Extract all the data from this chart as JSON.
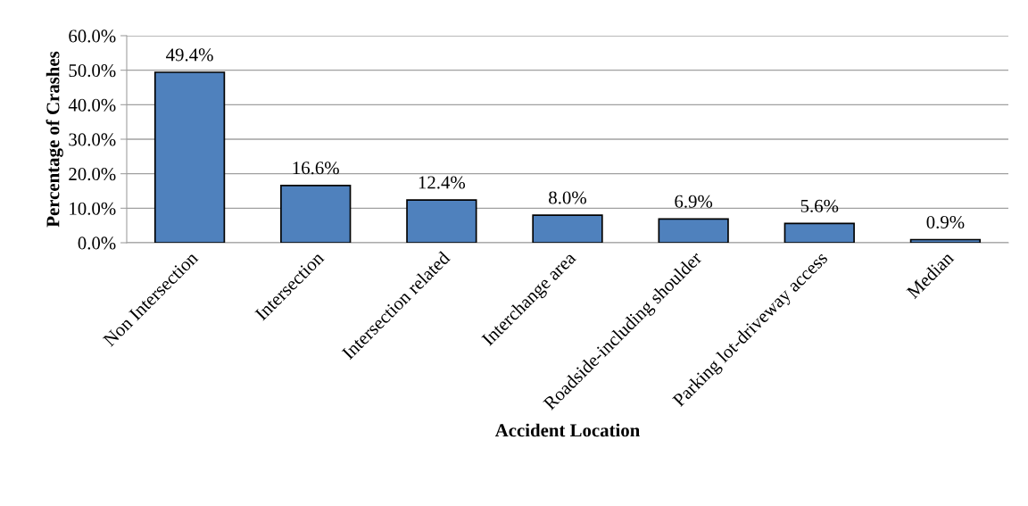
{
  "chart_data": {
    "type": "bar",
    "categories": [
      "Non Intersection",
      "Intersection",
      "Intersection related",
      "Interchange area",
      "Roadside-including shoulder",
      "Parking lot-driveway access",
      "Median"
    ],
    "values": [
      49.4,
      16.6,
      12.4,
      8.0,
      6.9,
      5.6,
      0.9
    ],
    "value_labels": [
      "49.4%",
      "16.6%",
      "12.4%",
      "8.0%",
      "6.9%",
      "5.6%",
      "0.9%"
    ],
    "color": "#4f81bd",
    "xlabel": "Accident Location",
    "ylabel": "Percentage of Crashes",
    "ylim": [
      0,
      60
    ],
    "yticks": [
      {
        "value": 0,
        "label": "0.0%"
      },
      {
        "value": 10,
        "label": "10.0%"
      },
      {
        "value": 20,
        "label": "20.0%"
      },
      {
        "value": 30,
        "label": "30.0%"
      },
      {
        "value": 40,
        "label": "40.0%"
      },
      {
        "value": 50,
        "label": "50.0%"
      },
      {
        "value": 60,
        "label": "60.0%"
      }
    ],
    "grid": "y"
  }
}
